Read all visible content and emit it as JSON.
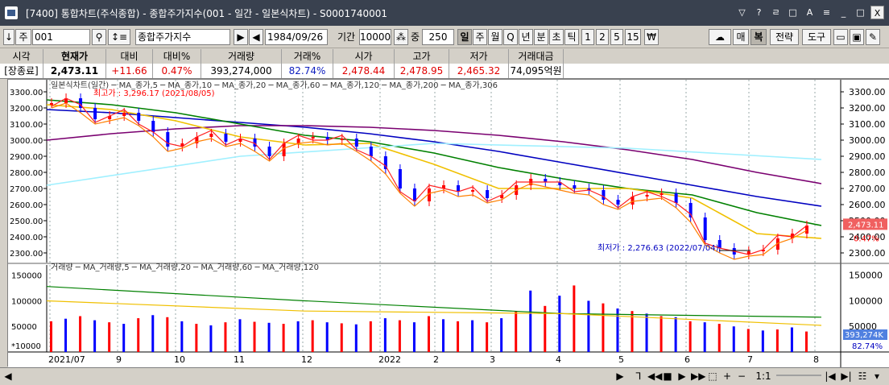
{
  "window": {
    "title": "[7400] 통합차트(주식종합) - 종합주가지수(001 - 일간 - 일본식차트) - S0001740001",
    "buttons": [
      "▽",
      "?",
      "ㄹ",
      "□",
      "A",
      "≡",
      "_",
      "□",
      "X"
    ]
  },
  "toolbar": {
    "code_value": "001",
    "code_label": "주",
    "name_value": "종합주가지수",
    "date_value": "1984/09/26",
    "period_label": "기간",
    "period_value": "10000",
    "count_label": "중",
    "count_value": "250",
    "intervals": [
      "일",
      "주",
      "월",
      "Q",
      "년",
      "분",
      "초",
      "틱",
      "1",
      "2",
      "5",
      "15",
      "₩"
    ],
    "right_buttons": [
      "매",
      "복",
      "전략",
      "도구"
    ]
  },
  "quote": {
    "headers": [
      "시각",
      "현재가",
      "대비",
      "대비%",
      "거래량",
      "거래%",
      "시가",
      "고가",
      "저가",
      "거래대금"
    ],
    "values": [
      "[장종료]",
      "2,473.11",
      "+11.66",
      "0.47%",
      "393,274,000",
      "82.74%",
      "2,478.44",
      "2,478.95",
      "2,465.32",
      "74,095억원"
    ]
  },
  "colors": {
    "up": "#ff0000",
    "down": "#0000ff",
    "ma5": "#ff2020",
    "ma10": "#e01010",
    "ma20": "#ff8000",
    "ma60": "#f0c000",
    "ma120": "#008000",
    "ma200": "#0000c0",
    "ma306": "#7a0070",
    "ma306b": "#a0f0ff"
  },
  "price_panel": {
    "legend": [
      "일본식차트(일간)",
      "MA_종가,5",
      "MA_종가,10",
      "MA_종가,20",
      "MA_종가,60",
      "MA_종가,120",
      "MA_종가,200",
      "MA_종가,306"
    ],
    "high_label": "최고가 : 3,296.17 (2021/08/05)",
    "low_label": "최저가 : 2,276.63 (2022/07/04)",
    "price_tag": "2,473.11",
    "pct_tag": "0.47%",
    "y_ticks": [
      "3300.00",
      "3200.00",
      "3100.00",
      "3000.00",
      "2900.00",
      "2800.00",
      "2700.00",
      "2600.00",
      "2500.00",
      "2400.00",
      "2300.00"
    ],
    "y_left": [
      "3300.00",
      "3200.00",
      "3100.00",
      "3000.00",
      "2900.00",
      "2800.00",
      "2700.00",
      "2600.00",
      "2500.00",
      "2400.00",
      "2300.00"
    ]
  },
  "volume_panel": {
    "legend": [
      "거래량",
      "MA_거래량,5",
      "MA_거래량,20",
      "MA_거래량,60",
      "MA_거래량,120"
    ],
    "unit": "*10000",
    "y_ticks": [
      "150000",
      "100000",
      "50000"
    ],
    "vol_tag": "393,274K",
    "pct_tag": "82.74%"
  },
  "x_axis": [
    "2021/07",
    "9",
    "10",
    "11",
    "12",
    "2022",
    "2",
    "3",
    "4",
    "5",
    "6",
    "7",
    "8"
  ],
  "statusbar": {
    "zoom": "1:1"
  },
  "chart_data": {
    "type": "candlestick",
    "series": [
      {
        "name": "MA_종가,200",
        "values": [
          3190,
          3170,
          3140,
          3110,
          3080,
          3040,
          2990,
          2930,
          2860,
          2790,
          2720,
          2650,
          2590
        ]
      },
      {
        "name": "MA_종가,306",
        "values": [
          3000,
          3040,
          3070,
          3090,
          3090,
          3080,
          3060,
          3030,
          2990,
          2940,
          2880,
          2800,
          2730
        ]
      },
      {
        "name": "MA_종가,120",
        "values": [
          3250,
          3220,
          3170,
          3100,
          3030,
          2990,
          2920,
          2830,
          2760,
          2700,
          2660,
          2550,
          2470
        ]
      },
      {
        "name": "MA_종가,60",
        "values": [
          3220,
          3190,
          3120,
          3020,
          2970,
          2980,
          2850,
          2700,
          2700,
          2700,
          2640,
          2420,
          2390
        ]
      }
    ],
    "x": [
      "2021/07",
      "9",
      "10",
      "11",
      "12",
      "2022",
      "2",
      "3",
      "4",
      "5",
      "6",
      "7",
      "8"
    ],
    "high": 3296.17,
    "low": 2276.63,
    "last": 2473.11,
    "ylim": [
      2250,
      3350
    ]
  }
}
